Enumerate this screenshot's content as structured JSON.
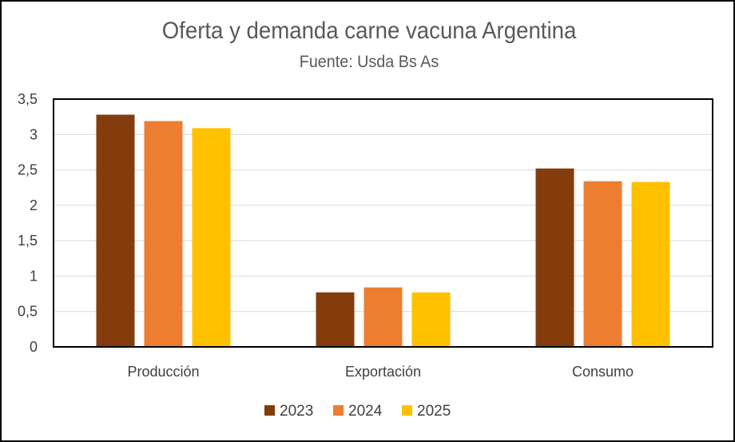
{
  "chart_data": {
    "type": "bar",
    "title": "Oferta y demanda carne vacuna Argentina",
    "subtitle": "Fuente: Usda Bs As",
    "categories": [
      "Producción",
      "Exportación",
      "Consumo"
    ],
    "series": [
      {
        "name": "2023",
        "color": "#843C0C",
        "values": [
          3.28,
          0.77,
          2.52
        ]
      },
      {
        "name": "2024",
        "color": "#ED7D31",
        "values": [
          3.19,
          0.84,
          2.34
        ]
      },
      {
        "name": "2025",
        "color": "#FFC000",
        "values": [
          3.09,
          0.77,
          2.33
        ]
      }
    ],
    "ylim": [
      0,
      3.5
    ],
    "yticks": [
      "0",
      "0,5",
      "1",
      "1,5",
      "2",
      "2,5",
      "3",
      "3,5"
    ],
    "grid": true,
    "legend": "bottom"
  }
}
